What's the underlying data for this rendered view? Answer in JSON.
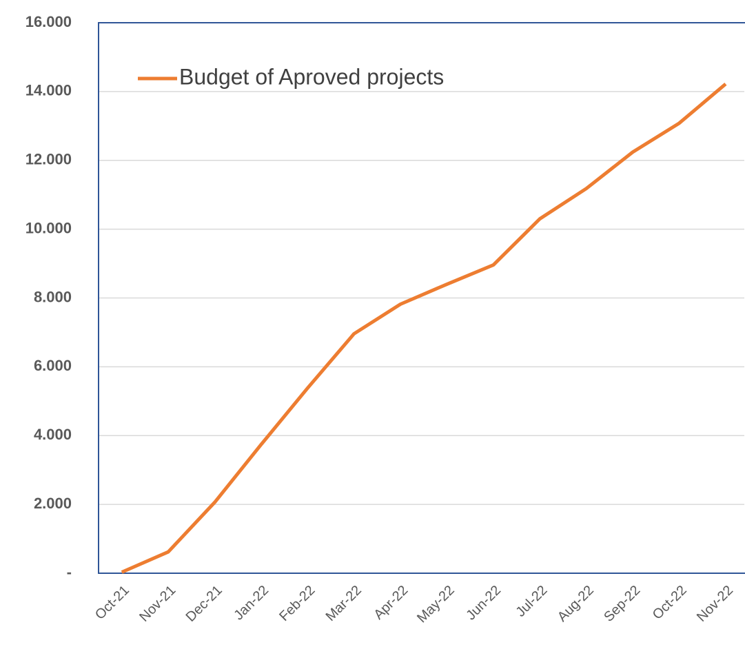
{
  "chart_data": {
    "type": "line",
    "categories": [
      "Oct-21",
      "Nov-21",
      "Dec-21",
      "Jan-22",
      "Feb-22",
      "Mar-22",
      "Apr-22",
      "May-22",
      "Jun-22",
      "Jul-22",
      "Aug-22",
      "Sep-22",
      "Oct-22",
      "Nov-22"
    ],
    "series": [
      {
        "name": "Budget of Aproved projects",
        "color": "#ed7d31",
        "values": [
          30,
          620,
          2060,
          3740,
          5380,
          6960,
          7820,
          8400,
          8960,
          10300,
          11180,
          12240,
          13080,
          14220
        ]
      }
    ],
    "ylim": [
      0,
      16000
    ],
    "yticks": [
      {
        "value": 0,
        "label": "-"
      },
      {
        "value": 2000,
        "label": "2.000"
      },
      {
        "value": 4000,
        "label": "4.000"
      },
      {
        "value": 6000,
        "label": "6.000"
      },
      {
        "value": 8000,
        "label": "8.000"
      },
      {
        "value": 10000,
        "label": "10.000"
      },
      {
        "value": 12000,
        "label": "12.000"
      },
      {
        "value": 14000,
        "label": "14.000"
      },
      {
        "value": 16000,
        "label": "16.000"
      }
    ],
    "grid": true,
    "legend": "top-left"
  }
}
